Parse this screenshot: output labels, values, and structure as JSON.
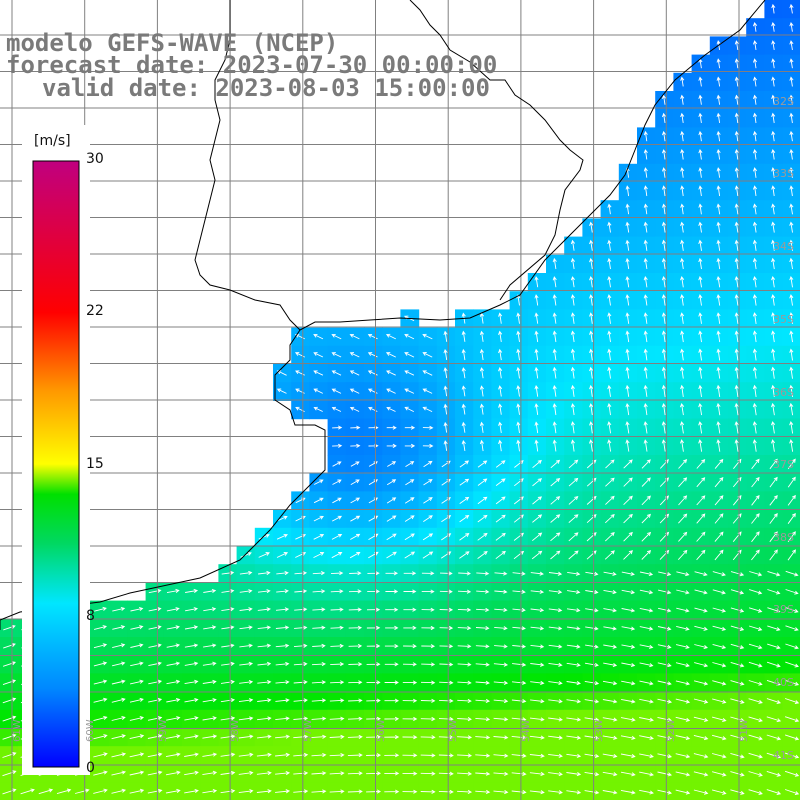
{
  "title": {
    "line1": "modelo GEFS-WAVE (NCEP)",
    "line2": "forecast date: 2023-07-30 00:00:00",
    "line3": "valid date: 2023-08-03 15:00:00"
  },
  "colorbar": {
    "unit": "[m/s]",
    "ticks": [
      "30",
      "22",
      "15",
      "8",
      "0"
    ],
    "tick_values": [
      30,
      22,
      15,
      8,
      0
    ],
    "range": [
      0,
      30
    ],
    "colors": [
      "#0000ff",
      "#0088ff",
      "#00e6ff",
      "#00e040",
      "#00ff00",
      "#ffff00",
      "#ff8800",
      "#ff0000",
      "#c0007f"
    ]
  },
  "grid": {
    "lat_labels": [
      "32S",
      "33S",
      "34S",
      "35S",
      "36S",
      "37S",
      "38S",
      "39S",
      "40S",
      "41S"
    ],
    "lon_labels": [
      "61W",
      "60W",
      "59W",
      "58W",
      "57W",
      "56W",
      "55W",
      "54W",
      "53W",
      "52W",
      "51W"
    ]
  },
  "colors": {
    "land": "#ffffff",
    "coast": "#000000",
    "grid_line": "#808080",
    "arrow": "#ffffff",
    "title": "#7a7a7a"
  }
}
